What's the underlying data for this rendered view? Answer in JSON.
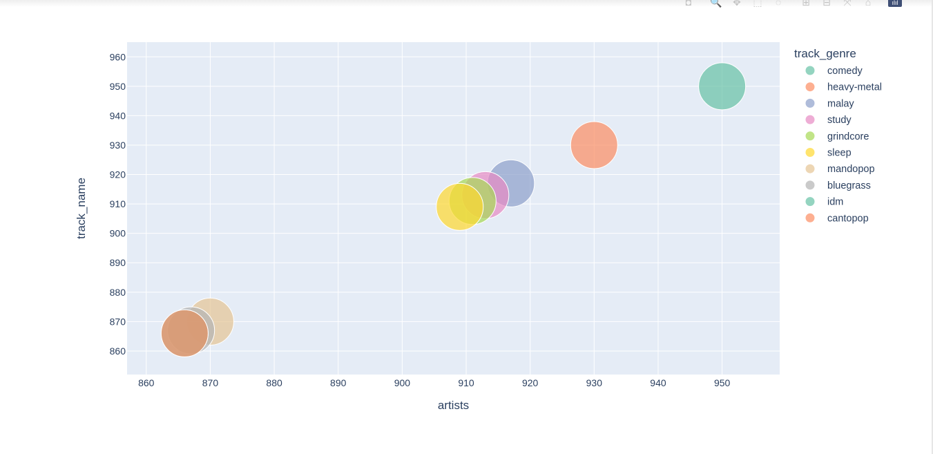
{
  "toolbar": {
    "buttons": [
      {
        "name": "camera-icon",
        "glyph": "◘"
      },
      {
        "name": "zoom-icon",
        "glyph": "🔍"
      },
      {
        "name": "pan-icon",
        "glyph": "✥"
      },
      {
        "name": "box-select-icon",
        "glyph": "⬚"
      },
      {
        "name": "lasso-select-icon",
        "glyph": "◌"
      },
      {
        "name": "zoom-in-icon",
        "glyph": "⊞"
      },
      {
        "name": "zoom-out-icon",
        "glyph": "⊟"
      },
      {
        "name": "autoscale-icon",
        "glyph": "⤧"
      },
      {
        "name": "reset-axes-icon",
        "glyph": "⌂"
      },
      {
        "name": "plotly-logo-icon",
        "glyph": "ılıl"
      }
    ]
  },
  "chart_data": {
    "type": "scatter",
    "xlabel": "artists",
    "ylabel": "track_name",
    "xlim": [
      857,
      959
    ],
    "ylim": [
      852,
      965
    ],
    "xticks": [
      860,
      870,
      880,
      890,
      900,
      910,
      920,
      930,
      940,
      950
    ],
    "yticks": [
      860,
      870,
      880,
      890,
      900,
      910,
      920,
      930,
      940,
      950,
      960
    ],
    "legend_title": "track_genre",
    "legend_position": "right",
    "grid": true,
    "plot_background": "#e5ecf6",
    "series": [
      {
        "name": "comedy",
        "color": "#66c2a5",
        "x": 950,
        "y": 950
      },
      {
        "name": "heavy-metal",
        "color": "#fc8d62",
        "x": 930,
        "y": 930
      },
      {
        "name": "malay",
        "color": "#8da0cb",
        "x": 917,
        "y": 917
      },
      {
        "name": "study",
        "color": "#e78ac3",
        "x": 913,
        "y": 913
      },
      {
        "name": "grindcore",
        "color": "#a6d854",
        "x": 911,
        "y": 911
      },
      {
        "name": "sleep",
        "color": "#ffd92f",
        "x": 909,
        "y": 909
      },
      {
        "name": "mandopop",
        "color": "#e5c494",
        "x": 870,
        "y": 870
      },
      {
        "name": "bluegrass",
        "color": "#b3b3b3",
        "x": 867,
        "y": 867
      },
      {
        "name": "idm",
        "color": "#66c2a5",
        "x": 866,
        "y": 866
      },
      {
        "name": "cantopop",
        "color": "#fc8d62",
        "x": 866,
        "y": 866
      }
    ]
  }
}
